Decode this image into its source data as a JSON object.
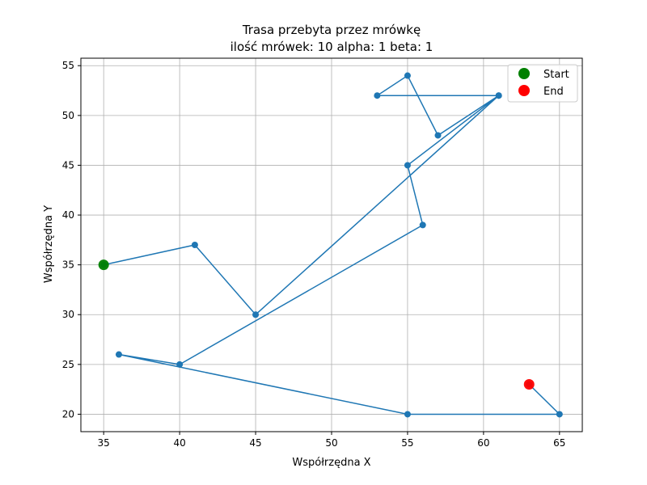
{
  "chart_data": {
    "type": "line",
    "title": "Trasa przebyta przez mrówkę",
    "subtitle": "ilość mrówek: 10 alpha: 1 beta: 1",
    "xlabel": "Współrzędna X",
    "ylabel": "Współrzędna Y",
    "xlim": [
      33.5,
      66.5
    ],
    "ylim": [
      18.25,
      55.75
    ],
    "xticks": [
      35,
      40,
      45,
      50,
      55,
      60,
      65
    ],
    "yticks": [
      20,
      25,
      30,
      35,
      40,
      45,
      50,
      55
    ],
    "grid": true,
    "legend_position": "top-right",
    "series": [
      {
        "x": [
          35,
          41,
          45,
          61,
          53,
          55,
          57,
          61,
          55,
          56,
          40,
          36,
          55,
          65,
          63
        ],
        "y": [
          35,
          37,
          30,
          52,
          52,
          54,
          48,
          52,
          45,
          39,
          25,
          26,
          20,
          20,
          23
        ],
        "color": "#1f77b4"
      }
    ],
    "markers": [
      {
        "name": "Start",
        "x": 35,
        "y": 35,
        "color": "#008000"
      },
      {
        "name": "End",
        "x": 63,
        "y": 23,
        "color": "#ff0000"
      }
    ]
  }
}
